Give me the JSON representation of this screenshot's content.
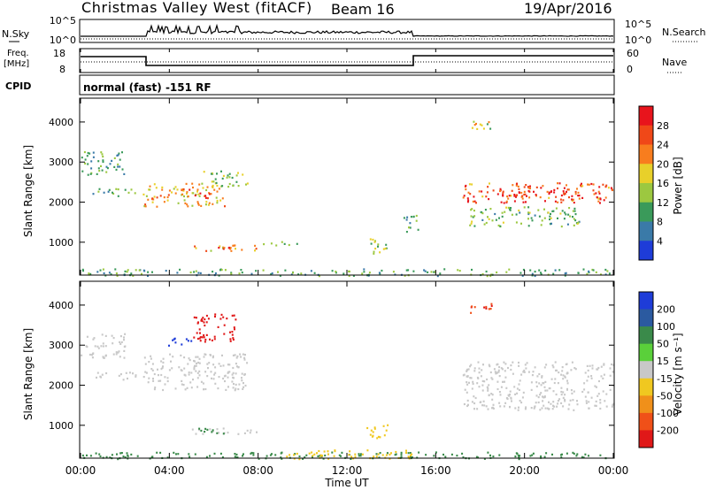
{
  "header": {
    "station": "Christmas Valley West (fitACF)",
    "beam": "Beam 16",
    "date": "19/Apr/2016"
  },
  "noise_panel": {
    "left_label": "N.Sky",
    "left_ticks": [
      "10^5",
      "10^0"
    ],
    "right_ticks": [
      "10^5",
      "10^0"
    ],
    "right_label": "N.Search"
  },
  "freq_panel": {
    "left_label_line1": "Freq.",
    "left_label_line2": "[MHz]",
    "left_ticks": [
      "18",
      "8"
    ],
    "right_ticks": [
      "60",
      "0"
    ],
    "right_label": "Nave"
  },
  "cpid": {
    "label": "CPID",
    "text": "normal (fast) -151 RF"
  },
  "power_panel": {
    "ylabel": "Slant Range [km]",
    "yticks": [
      "4000",
      "3000",
      "2000",
      "1000"
    ],
    "colorbar_label": "Power [dB]",
    "colorbar_ticks": [
      "28",
      "24",
      "20",
      "16",
      "12",
      "8",
      "4"
    ],
    "colorbar_colors": [
      "#e8141c",
      "#f04818",
      "#f87d1e",
      "#e8d02a",
      "#9cc840",
      "#3a9a5a",
      "#3a7aa8",
      "#1e3cd8"
    ]
  },
  "velocity_panel": {
    "ylabel": "Slant Range [km]",
    "yticks": [
      "4000",
      "3000",
      "2000",
      "1000"
    ],
    "colorbar_label": "Velocity [m s⁻¹]",
    "colorbar_ticks": [
      "200",
      "100",
      "50",
      "15",
      "-15",
      "-50",
      "-100",
      "-200"
    ],
    "colorbar_colors": [
      "#1e3cd8",
      "#2b5aa0",
      "#3a8a4a",
      "#5ad03a",
      "#c8c8c8",
      "#f0c820",
      "#f0901a",
      "#f05018",
      "#e01818"
    ]
  },
  "xaxis": {
    "ticks": [
      "00:00",
      "04:00",
      "08:00",
      "12:00",
      "16:00",
      "20:00",
      "00:00"
    ],
    "label": "Time UT"
  },
  "chart_data": [
    {
      "type": "heatmap",
      "title": "Power",
      "xlabel": "Time UT",
      "ylabel": "Slant Range [km]",
      "xlim": [
        0,
        24
      ],
      "ylim": [
        180,
        4550
      ],
      "clim": [
        0,
        30
      ],
      "colorbar_label": "Power [dB]",
      "regions": [
        {
          "x": [
            0.0,
            2.0
          ],
          "y": [
            2700,
            3300
          ],
          "value": 8
        },
        {
          "x": [
            0.5,
            2.5
          ],
          "y": [
            2150,
            2350
          ],
          "value": 8
        },
        {
          "x": [
            2.8,
            6.5
          ],
          "y": [
            1900,
            2500
          ],
          "value": 17
        },
        {
          "x": [
            4.5,
            6.0
          ],
          "y": [
            2100,
            2350
          ],
          "value": 26
        },
        {
          "x": [
            5.5,
            7.5
          ],
          "y": [
            2400,
            2800
          ],
          "value": 12
        },
        {
          "x": [
            5.0,
            8.0
          ],
          "y": [
            800,
            950
          ],
          "value": 18
        },
        {
          "x": [
            6.0,
            7.0
          ],
          "y": [
            850,
            950
          ],
          "value": 27
        },
        {
          "x": [
            8.2,
            10.0
          ],
          "y": [
            930,
            1030
          ],
          "value": 10
        },
        {
          "x": [
            12.8,
            13.8
          ],
          "y": [
            700,
            1100
          ],
          "value": 12
        },
        {
          "x": [
            14.5,
            15.2
          ],
          "y": [
            1200,
            1700
          ],
          "value": 8
        },
        {
          "x": [
            17.2,
            24.0
          ],
          "y": [
            2000,
            2500
          ],
          "value": 24
        },
        {
          "x": [
            18.5,
            22.0
          ],
          "y": [
            2150,
            2350
          ],
          "value": 29
        },
        {
          "x": [
            17.5,
            22.5
          ],
          "y": [
            1400,
            1900
          ],
          "value": 10
        },
        {
          "x": [
            17.5,
            18.5
          ],
          "y": [
            3800,
            4100
          ],
          "value": 14
        },
        {
          "x": [
            0.0,
            24.0
          ],
          "y": [
            180,
            350
          ],
          "value": 8
        }
      ]
    },
    {
      "type": "heatmap",
      "title": "Velocity",
      "xlabel": "Time UT",
      "ylabel": "Slant Range [km]",
      "xlim": [
        0,
        24
      ],
      "ylim": [
        180,
        4550
      ],
      "clim": [
        -200,
        200
      ],
      "colorbar_label": "Velocity [m s⁻¹]",
      "regions": [
        {
          "x": [
            0.0,
            2.0
          ],
          "y": [
            2700,
            3300
          ],
          "value": 0
        },
        {
          "x": [
            0.5,
            2.5
          ],
          "y": [
            2150,
            2350
          ],
          "value": 0
        },
        {
          "x": [
            2.8,
            7.5
          ],
          "y": [
            1900,
            2800
          ],
          "value": 0
        },
        {
          "x": [
            5.0,
            7.0
          ],
          "y": [
            3100,
            3800
          ],
          "value": -200
        },
        {
          "x": [
            3.8,
            5.0
          ],
          "y": [
            3000,
            3200
          ],
          "value": 200
        },
        {
          "x": [
            5.0,
            8.0
          ],
          "y": [
            800,
            950
          ],
          "value": 0
        },
        {
          "x": [
            5.0,
            6.5
          ],
          "y": [
            800,
            950
          ],
          "value": 50
        },
        {
          "x": [
            12.8,
            13.8
          ],
          "y": [
            700,
            1100
          ],
          "value": -30
        },
        {
          "x": [
            17.2,
            24.0
          ],
          "y": [
            1400,
            2600
          ],
          "value": 0
        },
        {
          "x": [
            17.5,
            18.5
          ],
          "y": [
            3800,
            4100
          ],
          "value": -150
        },
        {
          "x": [
            0.0,
            24.0
          ],
          "y": [
            180,
            350
          ],
          "value": 50
        },
        {
          "x": [
            9.0,
            15.0
          ],
          "y": [
            180,
            400
          ],
          "value": -40
        }
      ]
    }
  ]
}
